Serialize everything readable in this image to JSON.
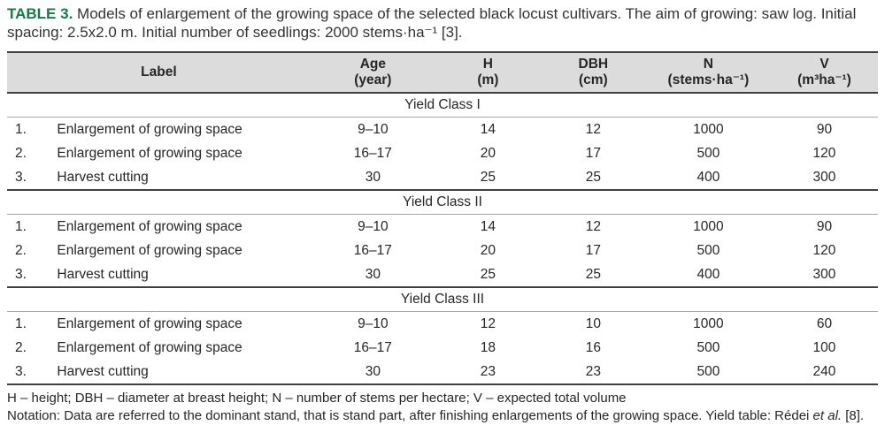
{
  "caption": {
    "label": "TABLE 3.",
    "text": " Models of enlargement of the growing space of the selected black locust cultivars. The aim of growing: saw log. Initial spacing: 2.5x2.0 m. Initial number of seedlings: 2000 stems·ha⁻¹ [3]."
  },
  "table": {
    "headers": [
      "Label",
      "Age\n(year)",
      "H\n(m)",
      "DBH\n(cm)",
      "N\n(stems·ha⁻¹)",
      "V\n(m³ha⁻¹)"
    ],
    "sections": [
      {
        "title": "Yield Class I",
        "rows": [
          {
            "num": "1.",
            "label": "Enlargement of growing space",
            "age": "9–10",
            "h": "14",
            "dbh": "12",
            "n": "1000",
            "v": "90"
          },
          {
            "num": "2.",
            "label": "Enlargement of growing space",
            "age": "16–17",
            "h": "20",
            "dbh": "17",
            "n": "500",
            "v": "120"
          },
          {
            "num": "3.",
            "label": "Harvest cutting",
            "age": "30",
            "h": "25",
            "dbh": "25",
            "n": "400",
            "v": "300"
          }
        ]
      },
      {
        "title": "Yield Class II",
        "rows": [
          {
            "num": "1.",
            "label": "Enlargement of growing space",
            "age": "9–10",
            "h": "14",
            "dbh": "12",
            "n": "1000",
            "v": "90"
          },
          {
            "num": "2.",
            "label": "Enlargement of growing space",
            "age": "16–17",
            "h": "20",
            "dbh": "17",
            "n": "500",
            "v": "120"
          },
          {
            "num": "3.",
            "label": "Harvest cutting",
            "age": "30",
            "h": "25",
            "dbh": "25",
            "n": "400",
            "v": "300"
          }
        ]
      },
      {
        "title": "Yield Class III",
        "rows": [
          {
            "num": "1.",
            "label": "Enlargement of growing space",
            "age": "9–10",
            "h": "12",
            "dbh": "10",
            "n": "1000",
            "v": "60"
          },
          {
            "num": "2.",
            "label": "Enlargement of growing space",
            "age": "16–17",
            "h": "18",
            "dbh": "16",
            "n": "500",
            "v": "100"
          },
          {
            "num": "3.",
            "label": "Harvest cutting",
            "age": "30",
            "h": "23",
            "dbh": "23",
            "n": "500",
            "v": "240"
          }
        ]
      }
    ]
  },
  "footnotes": {
    "line1": "H – height; DBH – diameter at breast height; N – number of stems per hectare; V – expected total volume",
    "notation_prefix": "Notation: Data are referred to the dominant stand, that is stand part, after finishing enlargements of the growing space. Yield table: Rédei ",
    "notation_italic": "et al.",
    "notation_suffix": " [8]."
  },
  "colors": {
    "accent_green": "#157a46",
    "header_bg": "#dcdcdc",
    "text": "#262626",
    "border_dark": "#404040",
    "border_light": "#a6a6a6"
  }
}
